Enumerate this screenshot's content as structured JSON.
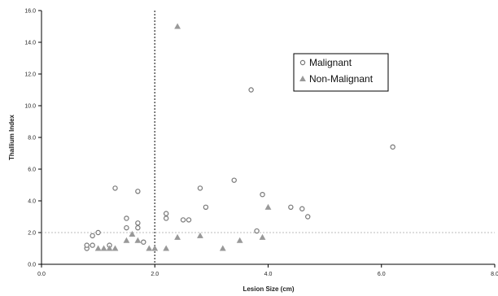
{
  "chart_data": {
    "type": "scatter",
    "xlabel": "Lesion Size (cm)",
    "ylabel": "Thallium Index",
    "xlim": [
      0,
      8
    ],
    "ylim": [
      0,
      16
    ],
    "x_ticks": [
      "0.0",
      "2.0",
      "4.0",
      "6.0",
      "8.0"
    ],
    "y_ticks": [
      "0.0",
      "2.0",
      "4.0",
      "6.0",
      "8.0",
      "10.0",
      "12.0",
      "14.0",
      "16.0"
    ],
    "grid": false,
    "legend_position": "upper-right",
    "reference_lines": [
      {
        "orientation": "vertical",
        "value": 2.0,
        "style": "dotted",
        "color": "#555555"
      },
      {
        "orientation": "horizontal",
        "value": 2.0,
        "style": "dotted",
        "color": "#bbbbbb"
      }
    ],
    "series": [
      {
        "name": "Malignant",
        "marker": "circle",
        "color": "#777777",
        "points": [
          [
            0.8,
            1.0
          ],
          [
            0.8,
            1.2
          ],
          [
            0.9,
            1.2
          ],
          [
            0.9,
            1.8
          ],
          [
            1.0,
            2.0
          ],
          [
            1.2,
            1.2
          ],
          [
            1.3,
            4.8
          ],
          [
            1.5,
            2.3
          ],
          [
            1.5,
            2.9
          ],
          [
            1.7,
            2.3
          ],
          [
            1.7,
            2.6
          ],
          [
            1.7,
            4.6
          ],
          [
            1.8,
            1.4
          ],
          [
            2.2,
            2.9
          ],
          [
            2.2,
            3.2
          ],
          [
            2.5,
            2.8
          ],
          [
            2.6,
            2.8
          ],
          [
            2.8,
            4.8
          ],
          [
            2.9,
            3.6
          ],
          [
            3.4,
            5.3
          ],
          [
            3.7,
            11.0
          ],
          [
            3.8,
            2.1
          ],
          [
            3.9,
            4.4
          ],
          [
            4.4,
            3.6
          ],
          [
            4.6,
            3.5
          ],
          [
            4.7,
            3.0
          ],
          [
            6.2,
            7.4
          ]
        ]
      },
      {
        "name": "Non-Malignant",
        "marker": "triangle",
        "color": "#999999",
        "points": [
          [
            1.0,
            1.0
          ],
          [
            1.1,
            1.0
          ],
          [
            1.2,
            1.0
          ],
          [
            1.3,
            1.0
          ],
          [
            1.5,
            1.5
          ],
          [
            1.6,
            1.9
          ],
          [
            1.7,
            1.5
          ],
          [
            1.9,
            1.0
          ],
          [
            2.0,
            1.0
          ],
          [
            2.2,
            1.0
          ],
          [
            2.4,
            1.7
          ],
          [
            2.4,
            15.0
          ],
          [
            2.8,
            1.8
          ],
          [
            3.2,
            1.0
          ],
          [
            3.5,
            1.5
          ],
          [
            3.9,
            1.7
          ],
          [
            4.0,
            3.6
          ]
        ]
      }
    ]
  }
}
